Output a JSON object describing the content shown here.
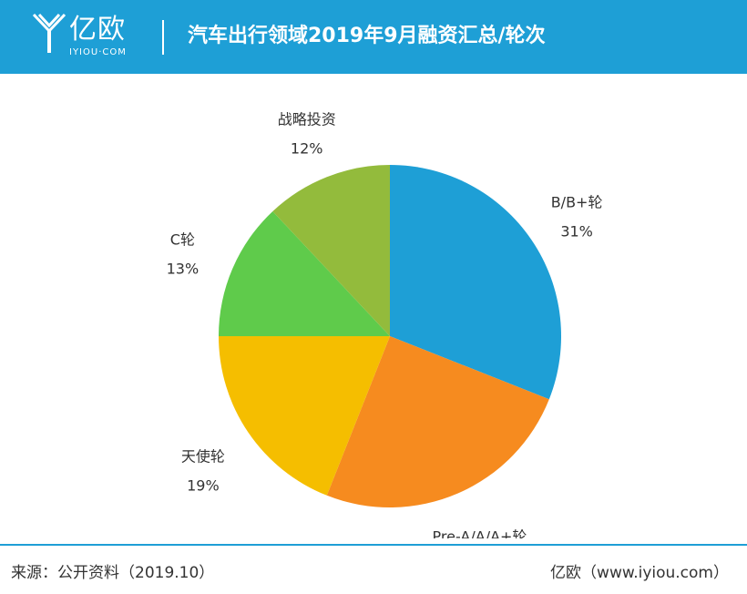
{
  "header": {
    "logo_text": "亿欧",
    "logo_sub": "IYIOU·COM",
    "title": "汽车出行领域2019年9月融资汇总/轮次"
  },
  "chart_data": {
    "type": "pie",
    "title": "汽车出行领域2019年9月融资汇总/轮次",
    "slices": [
      {
        "label": "B/B+轮",
        "value": 31,
        "value_label": "31%",
        "color": "#1e9fd6"
      },
      {
        "label": "Pre-A/A/A+轮",
        "value": 25,
        "value_label": "25%",
        "color": "#f68b1f"
      },
      {
        "label": "天使轮",
        "value": 19,
        "value_label": "19%",
        "color": "#f5be00"
      },
      {
        "label": "C轮",
        "value": 13,
        "value_label": "13%",
        "color": "#5fcb4b"
      },
      {
        "label": "战略投资",
        "value": 12,
        "value_label": "12%",
        "color": "#93bb3c"
      }
    ]
  },
  "footer": {
    "source": "来源：公开资料（2019.10）",
    "brand": "亿欧（www.iyiou.com）"
  }
}
